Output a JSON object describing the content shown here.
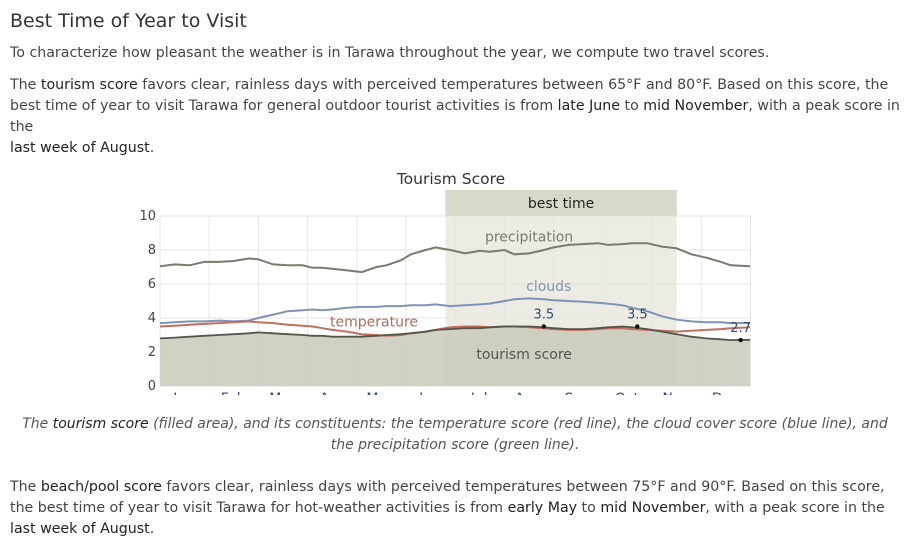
{
  "section": {
    "heading": "Best Time of Year to Visit",
    "intro": "To characterize how pleasant the weather is in Tarawa throughout the year, we compute two travel scores.",
    "tourism_paragraph": {
      "prefix": "The ",
      "term": "tourism score",
      "part1": " favors clear, rainless days with perceived temperatures between 65°F and 80°F. Based on this score, the best time of year to visit Tarawa for general outdoor tourist activities is from ",
      "start": "late June",
      "to": " to ",
      "end": "mid November",
      "part2": ", with a peak score in the ",
      "peak": "last week of August",
      "suffix": "."
    },
    "caption": {
      "prefix": "The ",
      "term": "tourism score",
      "rest": " (filled area), and its constituents: the temperature score (red line), the cloud cover score (blue line), and the precipitation score (green line)."
    },
    "beach_paragraph": {
      "prefix": "The ",
      "term": "beach/pool score",
      "part1": " favors clear, rainless days with perceived temperatures between 75°F and 90°F. Based on this score, the best time of year to visit Tarawa for hot-weather activities is from ",
      "start": "early May",
      "to": " to ",
      "end": "mid November",
      "part2": ", with a peak score in the ",
      "peak": "last week of August",
      "suffix": "."
    }
  },
  "chart_data": {
    "type": "line",
    "title": "Tourism Score",
    "xlabel": "",
    "ylabel": "",
    "x_range": [
      1,
      12.99
    ],
    "ylim": [
      0,
      10
    ],
    "yticks": [
      0,
      2,
      4,
      6,
      8,
      10
    ],
    "categories": [
      "Jan",
      "Feb",
      "Mar",
      "Apr",
      "May",
      "Jun",
      "Jul",
      "Aug",
      "Sep",
      "Oct",
      "Nov",
      "Dec"
    ],
    "grid": true,
    "best_time": {
      "label": "best time",
      "start": 6.8,
      "end": 11.5
    },
    "series": [
      {
        "name": "precipitation",
        "color": "#7a7a6e",
        "label_at": {
          "x": 8.5,
          "y": 8.5
        },
        "x": [
          1.0,
          1.3,
          1.6,
          1.9,
          2.2,
          2.5,
          2.8,
          3.0,
          3.3,
          3.6,
          3.9,
          4.1,
          4.3,
          4.5,
          4.8,
          5.1,
          5.4,
          5.6,
          5.9,
          6.1,
          6.4,
          6.6,
          6.9,
          7.2,
          7.5,
          7.7,
          8.0,
          8.2,
          8.5,
          8.8,
          9.0,
          9.3,
          9.6,
          9.9,
          10.1,
          10.4,
          10.6,
          10.9,
          11.2,
          11.5,
          11.8,
          12.1,
          12.4,
          12.6,
          12.99
        ],
        "values": [
          7.05,
          7.15,
          7.1,
          7.3,
          7.3,
          7.35,
          7.5,
          7.45,
          7.15,
          7.1,
          7.1,
          6.95,
          6.95,
          6.9,
          6.8,
          6.7,
          7.0,
          7.1,
          7.4,
          7.75,
          8.0,
          8.15,
          8.0,
          7.8,
          7.95,
          7.9,
          8.0,
          7.75,
          7.8,
          8.0,
          8.15,
          8.3,
          8.35,
          8.4,
          8.3,
          8.35,
          8.4,
          8.4,
          8.2,
          8.1,
          7.75,
          7.55,
          7.3,
          7.1,
          7.05
        ]
      },
      {
        "name": "clouds",
        "color": "#7f93b3",
        "label_at": {
          "x": 8.9,
          "y": 5.6
        },
        "x": [
          1.0,
          1.3,
          1.6,
          1.9,
          2.2,
          2.5,
          2.8,
          3.0,
          3.3,
          3.6,
          3.9,
          4.1,
          4.3,
          4.5,
          4.8,
          5.1,
          5.4,
          5.6,
          5.9,
          6.1,
          6.4,
          6.6,
          6.9,
          7.2,
          7.5,
          7.7,
          8.0,
          8.2,
          8.5,
          8.8,
          9.0,
          9.3,
          9.6,
          9.9,
          10.1,
          10.4,
          10.6,
          10.9,
          11.2,
          11.5,
          11.8,
          12.1,
          12.4,
          12.6,
          12.99
        ],
        "values": [
          3.7,
          3.75,
          3.8,
          3.8,
          3.85,
          3.8,
          3.85,
          4.0,
          4.2,
          4.4,
          4.45,
          4.5,
          4.45,
          4.5,
          4.6,
          4.65,
          4.65,
          4.7,
          4.7,
          4.75,
          4.75,
          4.8,
          4.7,
          4.75,
          4.8,
          4.85,
          5.0,
          5.1,
          5.15,
          5.1,
          5.05,
          5.0,
          4.95,
          4.9,
          4.85,
          4.75,
          4.6,
          4.4,
          4.1,
          3.9,
          3.8,
          3.75,
          3.75,
          3.7,
          3.7
        ]
      },
      {
        "name": "temperature",
        "color": "#c07060",
        "label_at": {
          "x": 5.35,
          "y": 3.5
        },
        "x": [
          1.0,
          1.3,
          1.6,
          1.9,
          2.2,
          2.5,
          2.8,
          3.0,
          3.3,
          3.6,
          3.9,
          4.1,
          4.3,
          4.5,
          4.8,
          5.1,
          5.4,
          5.6,
          5.9,
          6.1,
          6.4,
          6.6,
          6.9,
          7.2,
          7.5,
          7.7,
          8.0,
          8.2,
          8.5,
          8.8,
          9.0,
          9.3,
          9.6,
          9.9,
          10.1,
          10.4,
          10.6,
          10.9,
          11.2,
          11.5,
          11.8,
          12.1,
          12.4,
          12.6,
          12.99
        ],
        "values": [
          3.5,
          3.55,
          3.6,
          3.65,
          3.7,
          3.75,
          3.8,
          3.75,
          3.7,
          3.6,
          3.55,
          3.5,
          3.4,
          3.3,
          3.2,
          3.05,
          3.0,
          2.95,
          3.0,
          3.1,
          3.2,
          3.3,
          3.45,
          3.5,
          3.5,
          3.45,
          3.5,
          3.5,
          3.45,
          3.4,
          3.35,
          3.3,
          3.3,
          3.35,
          3.4,
          3.4,
          3.35,
          3.3,
          3.25,
          3.2,
          3.25,
          3.3,
          3.35,
          3.4,
          3.45
        ]
      },
      {
        "name": "tourism score",
        "color": "#55554a",
        "fill": "#c9c9bb",
        "label_at": {
          "x": 8.4,
          "y": 1.6
        },
        "x": [
          1.0,
          1.3,
          1.6,
          1.9,
          2.2,
          2.5,
          2.8,
          3.0,
          3.3,
          3.6,
          3.9,
          4.1,
          4.3,
          4.5,
          4.8,
          5.1,
          5.4,
          5.6,
          5.9,
          6.1,
          6.4,
          6.6,
          6.9,
          7.2,
          7.5,
          7.7,
          8.0,
          8.2,
          8.5,
          8.8,
          9.0,
          9.3,
          9.6,
          9.9,
          10.1,
          10.4,
          10.6,
          10.9,
          11.2,
          11.5,
          11.8,
          12.1,
          12.4,
          12.6,
          12.99
        ],
        "values": [
          2.8,
          2.85,
          2.9,
          2.95,
          3.0,
          3.05,
          3.1,
          3.15,
          3.1,
          3.05,
          3.0,
          2.95,
          2.95,
          2.9,
          2.9,
          2.9,
          2.95,
          3.0,
          3.05,
          3.1,
          3.2,
          3.3,
          3.35,
          3.4,
          3.4,
          3.45,
          3.5,
          3.5,
          3.5,
          3.45,
          3.4,
          3.35,
          3.35,
          3.4,
          3.45,
          3.5,
          3.45,
          3.35,
          3.2,
          3.05,
          2.9,
          2.8,
          2.75,
          2.7,
          2.72
        ]
      }
    ],
    "annotations": [
      {
        "x": 8.8,
        "y": 3.5,
        "label": "3.5"
      },
      {
        "x": 10.7,
        "y": 3.5,
        "label": "3.5"
      },
      {
        "x": 12.8,
        "y": 2.7,
        "label": "2.7"
      }
    ]
  }
}
